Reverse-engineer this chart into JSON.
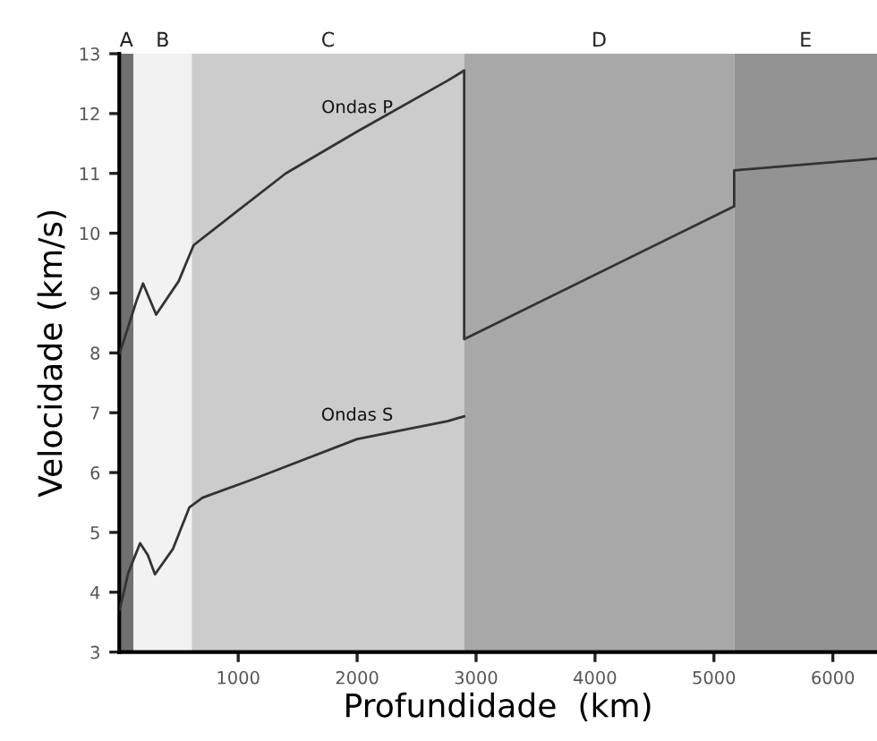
{
  "chart_data": {
    "type": "line",
    "xlabel": "Profundidade  (km)",
    "ylabel": "Velocidade (km/s)",
    "xlim": [
      0,
      6371
    ],
    "ylim": [
      3,
      13
    ],
    "xticks": [
      1000,
      2000,
      3000,
      4000,
      5000,
      6000
    ],
    "yticks": [
      3,
      4,
      5,
      6,
      7,
      8,
      9,
      10,
      11,
      12,
      13
    ],
    "grid": false,
    "legend": false,
    "marker": "none",
    "line_style": "solid",
    "bands": [
      {
        "axis": "x",
        "from": 0,
        "to": 120,
        "label": "A",
        "color": "#707070"
      },
      {
        "axis": "x",
        "from": 120,
        "to": 610,
        "label": "B",
        "color": "#f2f2f2"
      },
      {
        "axis": "x",
        "from": 610,
        "to": 2900,
        "label": "C",
        "color": "#cccccc"
      },
      {
        "axis": "x",
        "from": 2900,
        "to": 5170,
        "label": "D",
        "color": "#a8a8a8"
      },
      {
        "axis": "x",
        "from": 5170,
        "to": 6371,
        "label": "E",
        "color": "#939393"
      }
    ],
    "series": [
      {
        "name": "Ondas P",
        "color": "#333333",
        "x": [
          5,
          150,
          200,
          310,
          500,
          625,
          850,
          1400,
          2000,
          2760,
          2900,
          2900,
          5170,
          5170,
          6371
        ],
        "values": [
          8.0,
          8.9,
          9.16,
          8.64,
          9.2,
          9.8,
          10.15,
          11.0,
          11.7,
          12.55,
          12.72,
          8.23,
          10.45,
          11.05,
          11.25
        ]
      },
      {
        "name": "Ondas S",
        "color": "#333333",
        "x": [
          5,
          75,
          175,
          240,
          300,
          450,
          590,
          700,
          1100,
          2000,
          2760,
          2900
        ],
        "values": [
          3.72,
          4.32,
          4.82,
          4.62,
          4.3,
          4.72,
          5.42,
          5.58,
          5.87,
          6.56,
          6.86,
          6.94
        ]
      }
    ]
  }
}
